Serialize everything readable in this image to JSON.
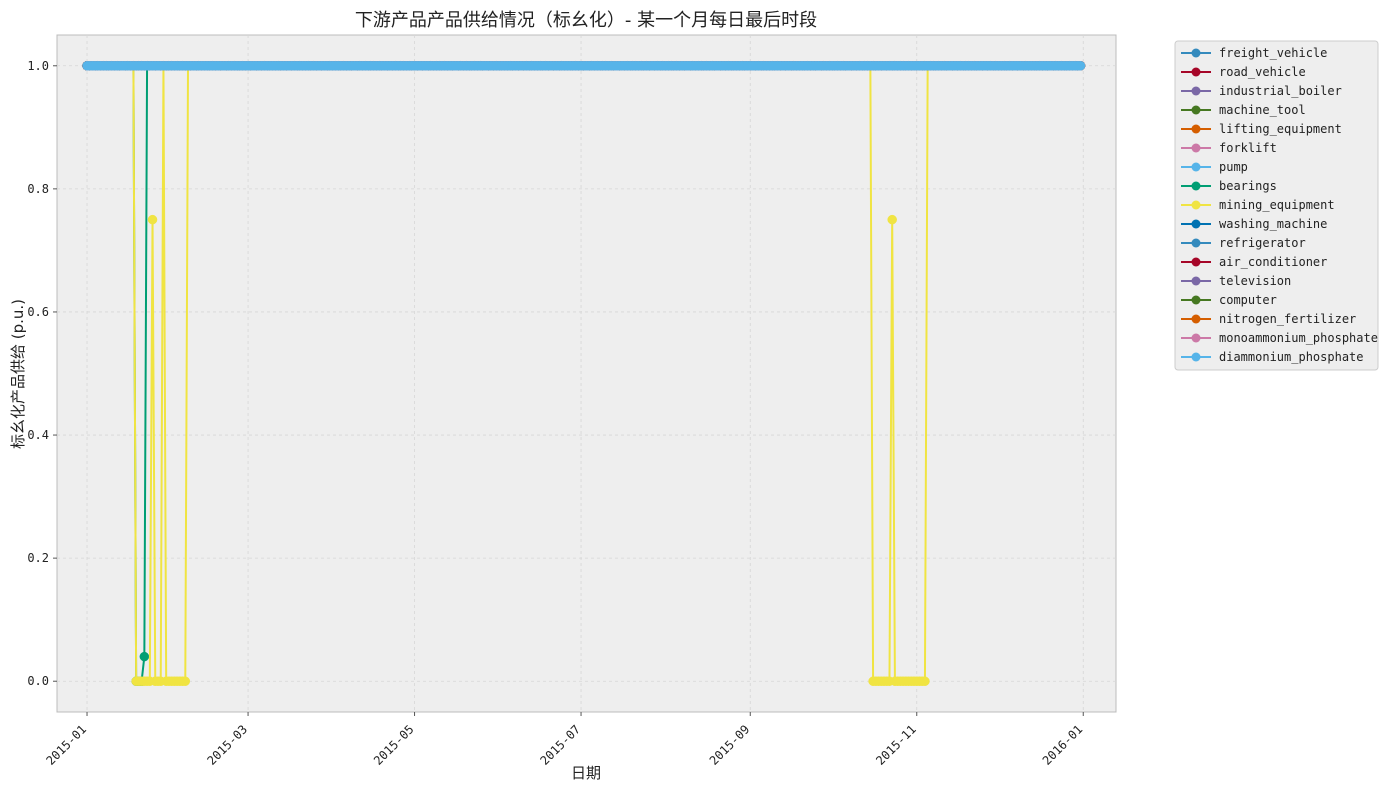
{
  "chart_data": {
    "type": "line",
    "title": "下游产品产品供给情况（标幺化）- 某一个月每日最后时段",
    "xlabel": "日期",
    "ylabel": "标幺化产品供给 (p.u.)",
    "x_range": [
      "2014-12-21",
      "2016-01-13"
    ],
    "ylim": [
      -0.05,
      1.05
    ],
    "x_ticks": [
      "2015-01",
      "2015-03",
      "2015-05",
      "2015-07",
      "2015-09",
      "2015-11",
      "2016-01"
    ],
    "x_tick_dates": [
      "2015-01-01",
      "2015-03-01",
      "2015-05-01",
      "2015-07-01",
      "2015-09-01",
      "2015-11-01",
      "2016-01-01"
    ],
    "y_ticks": [
      "0.0",
      "0.2",
      "0.4",
      "0.6",
      "0.8",
      "1.0"
    ],
    "y_tick_values": [
      0.0,
      0.2,
      0.4,
      0.6,
      0.8,
      1.0
    ],
    "grid": true,
    "legend_position": "outside-right",
    "series": [
      {
        "name": "freight_vehicle",
        "color": "#348abd",
        "points": [
          [
            "2015-01-01",
            1.0
          ],
          [
            "2015-12-31",
            1.0
          ]
        ]
      },
      {
        "name": "road_vehicle",
        "color": "#a60628",
        "points": [
          [
            "2015-01-01",
            1.0
          ],
          [
            "2015-12-31",
            1.0
          ]
        ]
      },
      {
        "name": "industrial_boiler",
        "color": "#7a68a6",
        "points": [
          [
            "2015-01-01",
            1.0
          ],
          [
            "2015-12-31",
            1.0
          ]
        ]
      },
      {
        "name": "machine_tool",
        "color": "#467821",
        "points": [
          [
            "2015-01-01",
            1.0
          ],
          [
            "2015-12-31",
            1.0
          ]
        ]
      },
      {
        "name": "lifting_equipment",
        "color": "#d55e00",
        "points": [
          [
            "2015-01-01",
            1.0
          ],
          [
            "2015-12-31",
            1.0
          ]
        ]
      },
      {
        "name": "forklift",
        "color": "#cc79a7",
        "points": [
          [
            "2015-01-01",
            1.0
          ],
          [
            "2015-12-31",
            1.0
          ]
        ]
      },
      {
        "name": "pump",
        "color": "#56b4e9",
        "points": [
          [
            "2015-01-01",
            1.0
          ],
          [
            "2015-12-31",
            1.0
          ]
        ]
      },
      {
        "name": "bearings",
        "color": "#009e73",
        "points": [
          [
            "2015-01-01",
            1.0
          ],
          [
            "2015-01-18",
            1.0
          ],
          [
            "2015-01-19",
            0.0
          ],
          [
            "2015-01-20",
            0.0
          ],
          [
            "2015-01-21",
            0.0
          ],
          [
            "2015-01-22",
            0.04
          ],
          [
            "2015-01-23",
            1.0
          ],
          [
            "2015-12-31",
            1.0
          ]
        ]
      },
      {
        "name": "mining_equipment",
        "color": "#f0e442",
        "points": [
          [
            "2015-01-01",
            1.0
          ],
          [
            "2015-01-18",
            1.0
          ],
          [
            "2015-01-19",
            0.0
          ],
          [
            "2015-01-20",
            0.0
          ],
          [
            "2015-01-21",
            0.0
          ],
          [
            "2015-01-22",
            0.0
          ],
          [
            "2015-01-23",
            0.0
          ],
          [
            "2015-01-24",
            0.0
          ],
          [
            "2015-01-25",
            0.75
          ],
          [
            "2015-01-26",
            0.0
          ],
          [
            "2015-01-27",
            0.0
          ],
          [
            "2015-01-28",
            0.0
          ],
          [
            "2015-01-29",
            1.0
          ],
          [
            "2015-01-30",
            0.0
          ],
          [
            "2015-01-31",
            0.0
          ],
          [
            "2015-02-01",
            0.0
          ],
          [
            "2015-02-02",
            0.0
          ],
          [
            "2015-02-03",
            0.0
          ],
          [
            "2015-02-04",
            0.0
          ],
          [
            "2015-02-05",
            0.0
          ],
          [
            "2015-02-06",
            0.0
          ],
          [
            "2015-02-07",
            1.0
          ],
          [
            "2015-10-15",
            1.0
          ],
          [
            "2015-10-16",
            0.0
          ],
          [
            "2015-10-17",
            0.0
          ],
          [
            "2015-10-18",
            0.0
          ],
          [
            "2015-10-19",
            0.0
          ],
          [
            "2015-10-20",
            0.0
          ],
          [
            "2015-10-21",
            0.0
          ],
          [
            "2015-10-22",
            0.0
          ],
          [
            "2015-10-23",
            0.75
          ],
          [
            "2015-10-24",
            0.0
          ],
          [
            "2015-10-25",
            0.0
          ],
          [
            "2015-10-26",
            0.0
          ],
          [
            "2015-10-27",
            0.0
          ],
          [
            "2015-10-28",
            0.0
          ],
          [
            "2015-10-29",
            0.0
          ],
          [
            "2015-10-30",
            0.0
          ],
          [
            "2015-10-31",
            0.0
          ],
          [
            "2015-11-01",
            0.0
          ],
          [
            "2015-11-02",
            0.0
          ],
          [
            "2015-11-03",
            0.0
          ],
          [
            "2015-11-04",
            0.0
          ],
          [
            "2015-11-05",
            1.0
          ],
          [
            "2015-12-31",
            1.0
          ]
        ]
      },
      {
        "name": "washing_machine",
        "color": "#0072b2",
        "points": [
          [
            "2015-01-01",
            1.0
          ],
          [
            "2015-12-31",
            1.0
          ]
        ]
      },
      {
        "name": "refrigerator",
        "color": "#348abd",
        "points": [
          [
            "2015-01-01",
            1.0
          ],
          [
            "2015-12-31",
            1.0
          ]
        ]
      },
      {
        "name": "air_conditioner",
        "color": "#a60628",
        "points": [
          [
            "2015-01-01",
            1.0
          ],
          [
            "2015-12-31",
            1.0
          ]
        ]
      },
      {
        "name": "television",
        "color": "#7a68a6",
        "points": [
          [
            "2015-01-01",
            1.0
          ],
          [
            "2015-12-31",
            1.0
          ]
        ]
      },
      {
        "name": "computer",
        "color": "#467821",
        "points": [
          [
            "2015-01-01",
            1.0
          ],
          [
            "2015-12-31",
            1.0
          ]
        ]
      },
      {
        "name": "nitrogen_fertilizer",
        "color": "#d55e00",
        "points": [
          [
            "2015-01-01",
            1.0
          ],
          [
            "2015-12-31",
            1.0
          ]
        ]
      },
      {
        "name": "monoammonium_phosphate",
        "color": "#cc79a7",
        "points": [
          [
            "2015-01-01",
            1.0
          ],
          [
            "2015-12-31",
            1.0
          ]
        ]
      },
      {
        "name": "diammonium_phosphate",
        "color": "#56b4e9",
        "points": [
          [
            "2015-01-01",
            1.0
          ],
          [
            "2015-12-31",
            1.0
          ]
        ]
      }
    ]
  }
}
